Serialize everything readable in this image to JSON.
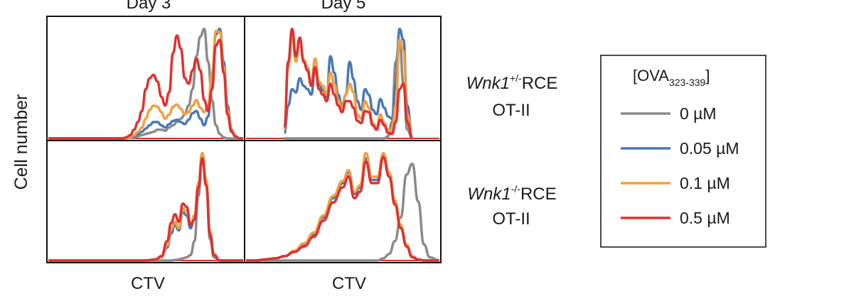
{
  "figure": {
    "ylabel": "Cell number",
    "column_titles": [
      "Day 3",
      "Day 5"
    ],
    "xlabel": "CTV",
    "row_labels": [
      {
        "gene": "Wnk1",
        "superscript": "+/-",
        "suffix": "RCE",
        "line2": "OT-II"
      },
      {
        "gene": "Wnk1",
        "superscript": "-/-",
        "suffix": "RCE",
        "line2": "OT-II"
      }
    ],
    "legend": {
      "title_prefix": "[OVA",
      "title_subscript": "323-339",
      "title_suffix": "]",
      "items": [
        {
          "label": "0 µM",
          "color": "#8a8a8a"
        },
        {
          "label": "0.05 µM",
          "color": "#4a78b5"
        },
        {
          "label": "0.1 µM",
          "color": "#f0a040"
        },
        {
          "label": "0.5 µM",
          "color": "#e03030"
        }
      ]
    }
  },
  "chart_data": [
    {
      "type": "line",
      "panel": "Day 3 / Wnk1+/- RCE OT-II",
      "x": [
        0,
        5,
        10,
        15,
        20,
        25,
        30,
        33,
        36,
        38,
        40,
        42,
        44,
        46,
        48,
        50,
        52,
        54,
        56,
        58,
        60,
        62,
        64,
        66,
        68,
        70,
        72,
        74,
        76,
        78,
        80,
        82,
        84,
        86,
        88,
        90,
        92,
        94,
        96,
        98,
        100
      ],
      "series": [
        {
          "name": "0 µM",
          "values": [
            0,
            0,
            0,
            0,
            0,
            0,
            0,
            0,
            0,
            0,
            0,
            0.5,
            1,
            2,
            3,
            4,
            5,
            6,
            8,
            8,
            7,
            10,
            12,
            15,
            18,
            22,
            30,
            45,
            75,
            93,
            100,
            70,
            35,
            12,
            4,
            1,
            0,
            0,
            0,
            0,
            0
          ]
        },
        {
          "name": "0.05 µM",
          "values": [
            0,
            0,
            0,
            0,
            0,
            0,
            0,
            0,
            0,
            0,
            0,
            1,
            2,
            4,
            6,
            9,
            12,
            15,
            15,
            12,
            10,
            13,
            16,
            17,
            15,
            13,
            17,
            23,
            25,
            18,
            12,
            20,
            55,
            95,
            100,
            70,
            30,
            8,
            2,
            0,
            0
          ]
        },
        {
          "name": "0.1 µM",
          "values": [
            0,
            0,
            0,
            0,
            0,
            0,
            0,
            0,
            0,
            0,
            0,
            1,
            3,
            6,
            10,
            18,
            26,
            30,
            29,
            24,
            18,
            22,
            29,
            31,
            27,
            22,
            24,
            30,
            35,
            28,
            24,
            30,
            60,
            98,
            97,
            65,
            26,
            7,
            2,
            0,
            0
          ]
        },
        {
          "name": "0.5 µM",
          "values": [
            0,
            0,
            0,
            0,
            0,
            0,
            0,
            0,
            0,
            0,
            1,
            3,
            8,
            15,
            25,
            45,
            55,
            58,
            52,
            38,
            30,
            42,
            78,
            94,
            82,
            55,
            50,
            62,
            73,
            62,
            35,
            25,
            45,
            85,
            90,
            60,
            22,
            6,
            2,
            0,
            0
          ]
        }
      ],
      "ylim": [
        0,
        105
      ]
    },
    {
      "type": "line",
      "panel": "Day 5 / Wnk1+/- RCE OT-II",
      "x": [
        0,
        3,
        6,
        9,
        12,
        15,
        18,
        21,
        24,
        27,
        30,
        33,
        36,
        39,
        42,
        45,
        48,
        51,
        54,
        57,
        60,
        63,
        66,
        69,
        72,
        75,
        78,
        81,
        84,
        87,
        90,
        93,
        96,
        100
      ],
      "series": [
        {
          "name": "0 µM",
          "values": [
            0,
            0,
            0,
            0,
            0,
            0,
            0,
            0,
            0,
            0,
            0,
            0,
            0,
            0,
            0,
            0,
            0,
            0,
            0,
            0,
            0,
            0,
            0,
            0,
            0,
            0,
            0,
            2,
            15,
            70,
            90,
            50,
            8,
            0
          ]
        },
        {
          "name": "0.05 µM",
          "values": [
            5,
            30,
            45,
            42,
            55,
            48,
            45,
            40,
            63,
            50,
            44,
            38,
            75,
            60,
            40,
            30,
            40,
            70,
            54,
            34,
            26,
            45,
            40,
            26,
            22,
            36,
            28,
            20,
            18,
            50,
            100,
            90,
            30,
            0
          ]
        },
        {
          "name": "0.1 µM",
          "values": [
            8,
            65,
            95,
            70,
            92,
            72,
            65,
            50,
            73,
            52,
            48,
            40,
            60,
            50,
            35,
            28,
            40,
            50,
            42,
            22,
            18,
            34,
            28,
            14,
            10,
            22,
            14,
            8,
            6,
            30,
            90,
            80,
            22,
            0
          ]
        },
        {
          "name": "0.5 µM",
          "values": [
            10,
            70,
            100,
            75,
            92,
            70,
            62,
            48,
            65,
            45,
            40,
            34,
            50,
            40,
            30,
            24,
            34,
            34,
            28,
            16,
            14,
            25,
            24,
            12,
            8,
            17,
            12,
            5,
            4,
            15,
            45,
            50,
            15,
            0
          ]
        }
      ],
      "ylim": [
        0,
        105
      ]
    },
    {
      "type": "line",
      "panel": "Day 3 / Wnk1-/- RCE OT-II",
      "x": [
        0,
        5,
        10,
        15,
        20,
        25,
        30,
        35,
        40,
        45,
        50,
        55,
        58,
        61,
        63,
        65,
        67,
        69,
        71,
        73,
        75,
        77,
        79,
        81,
        83,
        85,
        88,
        92,
        96,
        100
      ],
      "series": [
        {
          "name": "0 µM",
          "values": [
            0,
            0,
            0,
            0,
            0,
            0,
            0,
            0,
            0,
            0,
            0,
            0,
            0,
            0,
            0,
            0.5,
            1,
            2,
            3,
            5,
            18,
            60,
            100,
            70,
            20,
            3,
            0,
            0,
            0,
            0
          ]
        },
        {
          "name": "0.05 µM",
          "values": [
            0,
            0,
            0,
            0,
            0,
            0,
            0,
            0,
            0,
            0,
            0,
            1,
            3,
            12,
            25,
            33,
            28,
            45,
            42,
            30,
            40,
            70,
            98,
            72,
            25,
            5,
            0,
            0,
            0,
            0
          ]
        },
        {
          "name": "0.1 µM",
          "values": [
            0,
            0,
            0,
            0,
            0,
            0,
            0,
            0,
            0,
            0,
            0,
            1,
            3,
            14,
            29,
            36,
            30,
            48,
            46,
            34,
            42,
            72,
            100,
            75,
            27,
            6,
            0,
            0,
            0,
            0
          ]
        },
        {
          "name": "0.5 µM",
          "values": [
            0,
            0,
            0,
            0,
            0,
            0,
            0,
            0,
            0,
            0,
            0,
            1,
            4,
            18,
            35,
            43,
            36,
            53,
            50,
            33,
            38,
            68,
            95,
            70,
            24,
            5,
            0,
            0,
            0,
            0
          ]
        }
      ],
      "ylim": [
        0,
        105
      ]
    },
    {
      "type": "line",
      "panel": "Day 5 / Wnk1-/- RCE OT-II",
      "x": [
        0,
        5,
        10,
        15,
        20,
        25,
        30,
        35,
        40,
        45,
        50,
        53,
        56,
        59,
        62,
        65,
        68,
        71,
        74,
        77,
        80,
        83,
        86,
        89,
        92,
        95,
        100
      ],
      "series": [
        {
          "name": "0 µM",
          "values": [
            0,
            0,
            0,
            0,
            0,
            0,
            0,
            0,
            0,
            0,
            0,
            0,
            0,
            0,
            0,
            0,
            0,
            2,
            6,
            18,
            40,
            80,
            90,
            55,
            15,
            3,
            0
          ]
        },
        {
          "name": "0.05 µM",
          "values": [
            0,
            0,
            1,
            2,
            4,
            8,
            14,
            24,
            40,
            58,
            72,
            82,
            62,
            68,
            95,
            75,
            75,
            98,
            80,
            55,
            32,
            14,
            4,
            1,
            0,
            0,
            0
          ]
        },
        {
          "name": "0.1 µM",
          "values": [
            0,
            0,
            1,
            2,
            4,
            9,
            16,
            26,
            42,
            60,
            74,
            84,
            64,
            70,
            100,
            78,
            78,
            100,
            82,
            56,
            33,
            15,
            4,
            1,
            0,
            0,
            0
          ]
        },
        {
          "name": "0.5 µM",
          "values": [
            0,
            0,
            1,
            2,
            4,
            8,
            13,
            22,
            37,
            54,
            68,
            78,
            58,
            64,
            92,
            72,
            72,
            96,
            78,
            52,
            30,
            13,
            3,
            1,
            0,
            0,
            0
          ]
        }
      ],
      "ylim": [
        0,
        105
      ]
    }
  ]
}
